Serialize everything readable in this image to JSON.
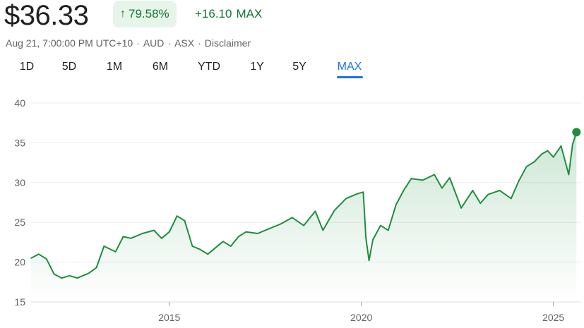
{
  "quote": {
    "price": "$36.33",
    "change_percent": "79.58%",
    "change_value": "+16.10",
    "period": "MAX",
    "up_arrow_icon": "arrow-up-icon",
    "positive_color": "#137333",
    "positive_bg": "#e6f4ea"
  },
  "meta": {
    "timestamp": "Aug 21, 7:00:00 PM UTC+10",
    "currency": "AUD",
    "exchange": "ASX",
    "disclaimer": "Disclaimer"
  },
  "tabs": [
    {
      "label": "1D",
      "active": false
    },
    {
      "label": "5D",
      "active": false
    },
    {
      "label": "1M",
      "active": false
    },
    {
      "label": "6M",
      "active": false
    },
    {
      "label": "YTD",
      "active": false
    },
    {
      "label": "1Y",
      "active": false
    },
    {
      "label": "5Y",
      "active": false
    },
    {
      "label": "MAX",
      "active": true
    }
  ],
  "chart_data": {
    "type": "area",
    "title": "",
    "xlabel": "",
    "ylabel": "",
    "ylim": [
      15,
      40
    ],
    "xlim": [
      2011.4,
      2025.65
    ],
    "yticks": [
      15,
      20,
      25,
      30,
      35,
      40
    ],
    "xticks": [
      {
        "value": 2015,
        "label": "2015"
      },
      {
        "value": 2020,
        "label": "2020"
      },
      {
        "value": 2025,
        "label": "2025"
      }
    ],
    "grid": true,
    "line_color": "#1e8e3e",
    "x": [
      2011.4,
      2011.6,
      2011.8,
      2012.0,
      2012.2,
      2012.4,
      2012.6,
      2012.9,
      2013.1,
      2013.3,
      2013.6,
      2013.8,
      2014.0,
      2014.3,
      2014.6,
      2014.8,
      2015.0,
      2015.2,
      2015.4,
      2015.6,
      2015.8,
      2016.0,
      2016.2,
      2016.4,
      2016.6,
      2016.8,
      2017.0,
      2017.3,
      2017.6,
      2017.9,
      2018.2,
      2018.5,
      2018.8,
      2019.0,
      2019.3,
      2019.6,
      2019.9,
      2020.05,
      2020.12,
      2020.2,
      2020.3,
      2020.5,
      2020.7,
      2020.9,
      2021.1,
      2021.3,
      2021.6,
      2021.9,
      2022.1,
      2022.3,
      2022.6,
      2022.9,
      2023.1,
      2023.3,
      2023.6,
      2023.9,
      2024.1,
      2024.3,
      2024.5,
      2024.7,
      2024.85,
      2025.0,
      2025.2,
      2025.4,
      2025.5,
      2025.6
    ],
    "values": [
      20.5,
      21.0,
      20.4,
      18.5,
      18.0,
      18.3,
      18.0,
      18.6,
      19.3,
      22.0,
      21.3,
      23.2,
      23.0,
      23.6,
      24.0,
      23.0,
      23.8,
      25.8,
      25.2,
      22.0,
      21.6,
      21.0,
      21.8,
      22.6,
      22.0,
      23.2,
      23.8,
      23.6,
      24.2,
      24.8,
      25.6,
      24.6,
      26.4,
      24.0,
      26.5,
      28.0,
      28.6,
      28.8,
      23.0,
      20.2,
      22.8,
      24.6,
      24.0,
      27.2,
      29.0,
      30.5,
      30.3,
      31.0,
      29.3,
      30.6,
      26.8,
      29.0,
      27.4,
      28.5,
      29.0,
      28.0,
      30.2,
      32.0,
      32.6,
      33.6,
      34.0,
      33.2,
      34.6,
      31.0,
      34.8,
      36.33
    ]
  }
}
